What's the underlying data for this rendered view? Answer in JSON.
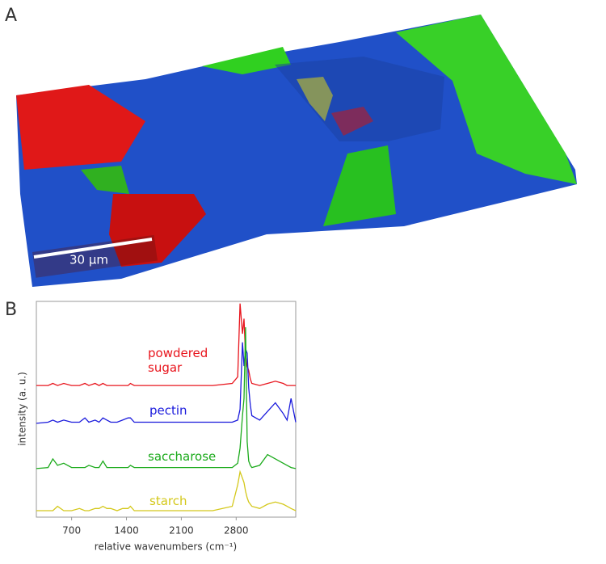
{
  "figure": {
    "panel_a": {
      "panel_label": "A",
      "scale_bar": "30 µm"
    }
  },
  "chart_data": {
    "type": "line",
    "panel_label": "B",
    "xlabel": "relative wavenumbers (cm⁻¹)",
    "ylabel": "intensity (a. u.)",
    "xlim": [
      250,
      3560
    ],
    "ylim": [
      0,
      100
    ],
    "xticks": [
      700,
      1400,
      2100,
      2800
    ],
    "x": [
      250,
      400,
      460,
      520,
      600,
      700,
      800,
      870,
      920,
      1000,
      1050,
      1100,
      1150,
      1200,
      1280,
      1350,
      1420,
      1450,
      1500,
      1800,
      2100,
      2500,
      2750,
      2820,
      2850,
      2880,
      2900,
      2920,
      2940,
      2960,
      2980,
      3000,
      3100,
      3200,
      3300,
      3400,
      3450,
      3500,
      3560
    ],
    "series": [
      {
        "name": "powdered sugar",
        "color": "#e8141c",
        "values": [
          61,
          61,
          62,
          61,
          62,
          61,
          61,
          62,
          61,
          62,
          61,
          62,
          61,
          61,
          61,
          61,
          61,
          62,
          61,
          61,
          61,
          61,
          62,
          65,
          99,
          85,
          92,
          75,
          70,
          68,
          64,
          62,
          61,
          62,
          63,
          62,
          61,
          61,
          61
        ]
      },
      {
        "name": "pectin",
        "color": "#1a1adc",
        "values": [
          43.5,
          44,
          45,
          44,
          45,
          44,
          44,
          46,
          44,
          45,
          44,
          46,
          45,
          44,
          44,
          45,
          46,
          46,
          44,
          44,
          44,
          44,
          44,
          45,
          50,
          81,
          70,
          78,
          76,
          60,
          52,
          47,
          45,
          49,
          53,
          48,
          45,
          55,
          44
        ]
      },
      {
        "name": "saccharose",
        "color": "#1aaa1a",
        "values": [
          22.5,
          23,
          27,
          24,
          25,
          23,
          23,
          23,
          24,
          23,
          23,
          26,
          23,
          23,
          23,
          23,
          23,
          24,
          23,
          23,
          23,
          23,
          23,
          25,
          32,
          47,
          55,
          88,
          35,
          26,
          24,
          23,
          24,
          29,
          27,
          25,
          24,
          23,
          22.5
        ]
      },
      {
        "name": "starch",
        "color": "#d4c81a",
        "values": [
          3,
          3,
          3,
          5,
          3,
          3,
          4,
          3,
          3,
          4,
          4,
          5,
          4,
          4,
          3,
          4,
          4,
          5,
          3,
          3,
          3,
          3,
          5,
          15,
          21,
          18,
          16,
          12,
          9,
          7,
          6,
          5,
          4,
          6,
          7,
          6,
          5,
          4,
          3
        ]
      }
    ]
  }
}
